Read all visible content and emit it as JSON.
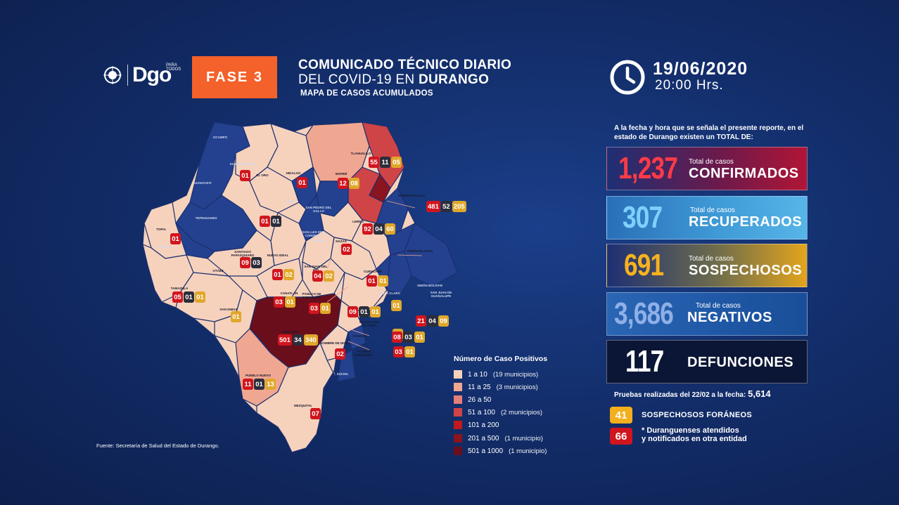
{
  "logo": {
    "text": "Dgo",
    "tagline": "PARA TODOS"
  },
  "phase": "FASE 3",
  "header": {
    "title_line1": "COMUNICADO TÉCNICO DIARIO",
    "title_line2_prefix": "DEL COVID-19 EN",
    "title_line2_bold": "DURANGO",
    "subtitle": "MAPA DE CASOS ACUMULADOS"
  },
  "datetime": {
    "date": "19/06/2020",
    "time": "20:00 Hrs."
  },
  "intro": "A la fecha y hora que se señala el presente reporte, en el estado de Durango existen un TOTAL DE:",
  "stats": {
    "confirmados": {
      "value": "1,237",
      "small": "Total de casos",
      "label": "CONFIRMADOS",
      "color": "#ff3b47"
    },
    "recuperados": {
      "value": "307",
      "small": "Total de casos",
      "label": "RECUPERADOS",
      "color": "#7fd0ff"
    },
    "sospechosos": {
      "value": "691",
      "small": "Total de casos",
      "label": "SOSPECHOSOS",
      "color": "#f6b21e"
    },
    "negativos": {
      "value": "3,686",
      "small": "Total de casos",
      "label": "NEGATIVOS",
      "color": "#8fb0e6"
    },
    "defunciones": {
      "value": "117",
      "label": "DEFUNCIONES",
      "color": "#ffffff"
    }
  },
  "pruebas": {
    "label": "Pruebas realizadas del 22/02 a la fecha:",
    "value": "5,614"
  },
  "footer_badges": {
    "foraneos": {
      "value": "41",
      "label": "SOSPECHOSOS FORÁNEOS"
    },
    "otra_entidad": {
      "value": "66",
      "label_line1": "* Duranguenses atendidos",
      "label_line2": "y notificados en otra entidad"
    }
  },
  "fuente": "Fuente: Secretaría de Salud del Estado de Durango.",
  "legend": {
    "title": "Número de Caso Positivos",
    "items": [
      {
        "range": "1 a 10",
        "note": "(19 municipios)",
        "color": "#f6d2bd"
      },
      {
        "range": "11 a 25",
        "note": "(3 municipios)",
        "color": "#f0a791"
      },
      {
        "range": "26 a 50",
        "note": "",
        "color": "#e47f7a"
      },
      {
        "range": "51 a 100",
        "note": "(2 municipios)",
        "color": "#cf4447"
      },
      {
        "range": "101 a 200",
        "note": "",
        "color": "#bf1b1f"
      },
      {
        "range": "201 a 500",
        "note": "(1 municipio)",
        "color": "#8a1420"
      },
      {
        "range": "501 a 1000",
        "note": "(1 municipio)",
        "color": "#6a0e1c"
      }
    ]
  },
  "map": {
    "colors": {
      "none": "#24418f",
      "none_dark": "#1e3a84",
      "low": "#f6d2bd",
      "mid": "#f0a791",
      "high": "#cf4447",
      "max": "#6a0e1c",
      "big": "#8a1420"
    },
    "labels": [
      {
        "name": "OCAMPO"
      },
      {
        "name": "SAN BERNARDO"
      },
      {
        "name": "GUANACEVÍ"
      },
      {
        "name": "HIDALGO"
      },
      {
        "name": "MAPIMÍ"
      },
      {
        "name": "TLAHUALILO"
      },
      {
        "name": "GÓMEZ PALACIO"
      },
      {
        "name": "LERDO"
      },
      {
        "name": "INDÉ"
      },
      {
        "name": "SAN PEDRO DEL GALLO"
      },
      {
        "name": "EL ORO"
      },
      {
        "name": "TEPEHUANES"
      },
      {
        "name": "TOPIA"
      },
      {
        "name": "CANELAS"
      },
      {
        "name": "SANTIAGO PAPASQUIARO"
      },
      {
        "name": "NUEVO IDEAL"
      },
      {
        "name": "NAZAS"
      },
      {
        "name": "RODEO"
      },
      {
        "name": "SAN LUIS DEL CORDERO"
      },
      {
        "name": "PEÑÓN BLANCO"
      },
      {
        "name": "SAN JUAN DEL RÍO"
      },
      {
        "name": "CUENCAMÉ"
      },
      {
        "name": "OTÁEZ"
      },
      {
        "name": "TAMAZULA"
      },
      {
        "name": "CANATLÁN"
      },
      {
        "name": "PÁNUCO DE CORONADO"
      },
      {
        "name": "SANTA CLARA"
      },
      {
        "name": "SIMÓN BOLÍVAR"
      },
      {
        "name": "SAN JUAN DE GUADALUPE"
      },
      {
        "name": "GUADALUPE VICTORIA"
      },
      {
        "name": "SAN DIMAS"
      },
      {
        "name": "DURANGO"
      },
      {
        "name": "POANAS"
      },
      {
        "name": "NOMBRE DE DIOS"
      },
      {
        "name": "VICENTE GUERRERO"
      },
      {
        "name": "SÚCHIL"
      },
      {
        "name": "PUEBLO NUEVO"
      },
      {
        "name": "MEZQUITAL"
      }
    ],
    "chips": [
      {
        "values": [
          "01"
        ]
      },
      {
        "values": [
          "01"
        ]
      },
      {
        "values": [
          "55",
          "11",
          "05"
        ]
      },
      {
        "values": [
          "12",
          "08"
        ]
      },
      {
        "values": [
          "481",
          "52",
          "205"
        ]
      },
      {
        "values": [
          "92",
          "04",
          "60"
        ]
      },
      {
        "values": [
          "01",
          "01"
        ]
      },
      {
        "values": [
          "01"
        ]
      },
      {
        "values": [
          "09",
          "03"
        ]
      },
      {
        "values": [
          "02"
        ]
      },
      {
        "values": [
          "01",
          "02"
        ]
      },
      {
        "values": [
          "04",
          "02"
        ]
      },
      {
        "values": [
          "01",
          "01"
        ]
      },
      {
        "values": [
          "03",
          "01"
        ]
      },
      {
        "values": [
          "01"
        ]
      },
      {
        "values": [
          "05",
          "01",
          "01"
        ]
      },
      {
        "values": [
          "03",
          "01"
        ]
      },
      {
        "values": [
          "09",
          "01",
          "01"
        ]
      },
      {
        "values": [
          "01"
        ]
      },
      {
        "values": [
          "21",
          "04",
          "09"
        ]
      },
      {
        "values": [
          "01"
        ]
      },
      {
        "values": [
          "501",
          "34",
          "340"
        ]
      },
      {
        "values": [
          "08",
          "03",
          "01"
        ]
      },
      {
        "values": [
          "02"
        ]
      },
      {
        "values": [
          "03",
          "01"
        ]
      },
      {
        "values": [
          "11",
          "01",
          "13"
        ]
      },
      {
        "values": [
          "07"
        ]
      }
    ]
  }
}
